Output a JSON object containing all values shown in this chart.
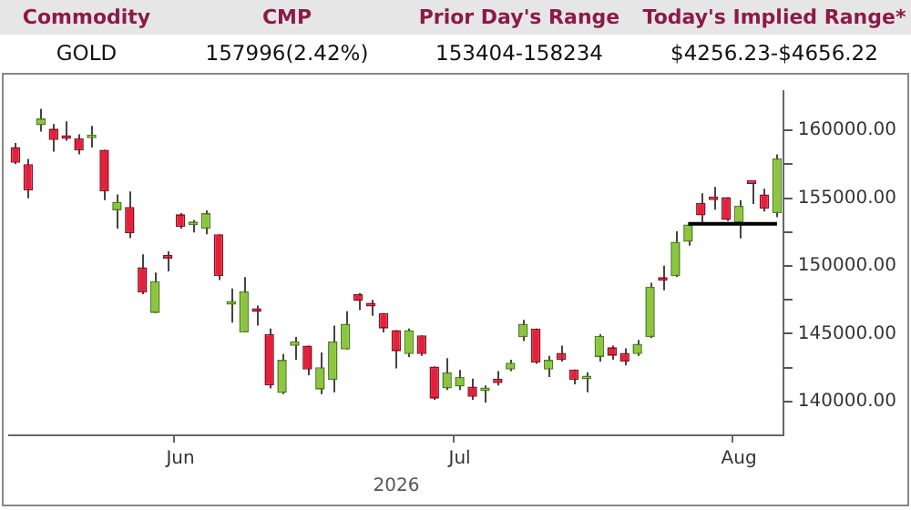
{
  "chart_data": {
    "type": "candlestick",
    "annotations": [
      "Commodity",
      "CMP",
      "Prior Day's Range",
      "Today's Implied Range*",
      "GOLD",
      "157996(2.42%)",
      "153404-158234",
      "$4256.23-$4656.22"
    ],
    "xlabel": "2026",
    "categories": [
      null,
      null,
      null,
      null,
      null,
      null,
      null,
      null,
      null,
      null,
      null,
      null,
      null,
      "Jun",
      null,
      null,
      null,
      null,
      null,
      null,
      null,
      null,
      null,
      null,
      null,
      null,
      null,
      null,
      null,
      null,
      null,
      null,
      null,
      null,
      null,
      "Jul",
      null,
      null,
      null,
      null,
      null,
      null,
      null,
      null,
      null,
      null,
      null,
      null,
      null,
      null,
      null,
      null,
      null,
      null,
      null,
      null,
      null,
      "Aug",
      null,
      null,
      null
    ],
    "ohlc": [
      [
        158775,
        159070,
        157510,
        157600
      ],
      [
        157510,
        157890,
        154985,
        155575
      ],
      [
        160375,
        161595,
        159911,
        160880
      ],
      [
        160122,
        160459,
        158438,
        159280
      ],
      [
        159440,
        160670,
        159230,
        159380
      ],
      [
        159406,
        159700,
        158228,
        158522
      ],
      [
        159420,
        160332,
        158733,
        159490
      ],
      [
        158565,
        158565,
        154860,
        155491
      ],
      [
        154100,
        155280,
        152755,
        154737
      ],
      [
        154354,
        155491,
        152040,
        152418
      ],
      [
        149892,
        150860,
        147913,
        148040
      ],
      [
        146524,
        149513,
        146524,
        148881
      ],
      [
        150625,
        151070,
        149600,
        150540
      ],
      [
        153807,
        153890,
        152755,
        152880
      ],
      [
        153000,
        153386,
        152460,
        153100
      ],
      [
        152755,
        154100,
        152333,
        153890
      ],
      [
        152333,
        152333,
        148965,
        149260
      ],
      [
        147150,
        148334,
        145808,
        147200
      ],
      [
        145092,
        149176,
        145092,
        148124
      ],
      [
        146700,
        147070,
        145600,
        146600
      ],
      [
        144966,
        145387,
        140966,
        141177
      ],
      [
        140630,
        143492,
        140545,
        143072
      ],
      [
        144103,
        144756,
        143072,
        144440
      ],
      [
        144123,
        144123,
        141935,
        142356
      ],
      [
        140882,
        143618,
        140545,
        142524
      ],
      [
        141598,
        145598,
        140672,
        144420
      ],
      [
        143829,
        146650,
        143829,
        145724
      ],
      [
        147913,
        147998,
        146735,
        147408
      ],
      [
        147100,
        147492,
        146313,
        147000
      ],
      [
        146524,
        146524,
        145092,
        145387
      ],
      [
        145260,
        145260,
        142440,
        143703
      ],
      [
        143492,
        145387,
        143282,
        145260
      ],
      [
        144882,
        144882,
        143366,
        143492
      ],
      [
        142566,
        142566,
        140125,
        140209
      ],
      [
        140966,
        143198,
        140840,
        142145
      ],
      [
        141093,
        142313,
        140840,
        141808
      ],
      [
        141093,
        141682,
        140125,
        140335
      ],
      [
        140756,
        141177,
        139914,
        140925
      ],
      [
        141682,
        142229,
        141177,
        141345
      ],
      [
        142356,
        143072,
        142229,
        142861
      ],
      [
        144756,
        146019,
        144461,
        145724
      ],
      [
        145387,
        145387,
        142777,
        142861
      ],
      [
        142356,
        143366,
        141808,
        143072
      ],
      [
        143576,
        144123,
        142945,
        143072
      ],
      [
        142356,
        142356,
        141261,
        141598
      ],
      [
        141640,
        142145,
        140672,
        141700
      ],
      [
        143282,
        144966,
        142945,
        144840
      ],
      [
        143998,
        144123,
        143072,
        143366
      ],
      [
        143576,
        143913,
        142650,
        142945
      ],
      [
        143492,
        144545,
        143366,
        144250
      ],
      [
        144756,
        148755,
        144672,
        148460
      ],
      [
        148960,
        150020,
        148207,
        148900
      ],
      [
        149260,
        152544,
        149176,
        151787
      ],
      [
        151787,
        153133,
        151492,
        153049
      ],
      [
        154649,
        155365,
        153176,
        153723
      ],
      [
        154900,
        155828,
        154144,
        154850
      ],
      [
        155070,
        155070,
        153302,
        153386
      ],
      [
        153176,
        154860,
        152038,
        154439
      ],
      [
        156122,
        156122,
        154565,
        156050
      ],
      [
        155280,
        155700,
        154018,
        154228
      ],
      [
        153892,
        158228,
        153597,
        157933
      ]
    ],
    "series": [
      {
        "type": "line",
        "color": "#000000",
        "values": [
          null,
          null,
          null,
          null,
          null,
          null,
          null,
          null,
          null,
          null,
          null,
          null,
          null,
          null,
          null,
          null,
          null,
          null,
          null,
          null,
          null,
          null,
          null,
          null,
          null,
          null,
          null,
          null,
          null,
          null,
          null,
          null,
          null,
          null,
          null,
          null,
          null,
          null,
          null,
          null,
          null,
          null,
          null,
          null,
          null,
          null,
          null,
          null,
          null,
          null,
          null,
          null,
          null,
          153100,
          153100,
          153100,
          153100,
          153100,
          153100,
          153100,
          153100
        ]
      }
    ],
    "ylim": [
      137500,
      162900
    ],
    "yticks": [
      {
        "value": 140000,
        "label": "140000.00"
      },
      {
        "value": 142500,
        "label": null
      },
      {
        "value": 145000,
        "label": "145000.00"
      },
      {
        "value": 147500,
        "label": null
      },
      {
        "value": 150000,
        "label": "150000.00"
      },
      {
        "value": 152500,
        "label": null
      },
      {
        "value": 155000,
        "label": "155000.00"
      },
      {
        "value": 157500,
        "label": null
      },
      {
        "value": 160000,
        "label": "160000.00"
      }
    ],
    "grid": false,
    "legend": false
  }
}
